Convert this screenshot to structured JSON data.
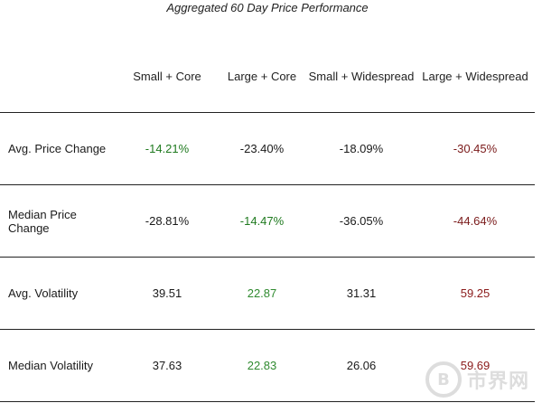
{
  "title": "Aggregated 60 Day Price Performance",
  "columns": [
    "",
    "Small + Core",
    "Large + Core",
    "Small + Widespread",
    "Large + Widespread"
  ],
  "rows": [
    {
      "label": "Avg. Price Change",
      "values": [
        "-14.21%",
        "-23.40%",
        "-18.09%",
        "-30.45%"
      ]
    },
    {
      "label": "Median Price Change",
      "values": [
        "-28.81%",
        "-14.47%",
        "-36.05%",
        "-44.64%"
      ]
    },
    {
      "label": "Avg. Volatility",
      "values": [
        "39.51",
        "22.87",
        "31.31",
        "59.25"
      ]
    },
    {
      "label": "Median Volatility",
      "values": [
        "37.63",
        "22.83",
        "26.06",
        "59.69"
      ]
    }
  ],
  "colors": {
    "best_green": "#1f7a1f",
    "worst_red": "#7a1a1a",
    "text": "#1a1a1a"
  },
  "watermark": {
    "symbol": "B",
    "text": "市界网"
  }
}
